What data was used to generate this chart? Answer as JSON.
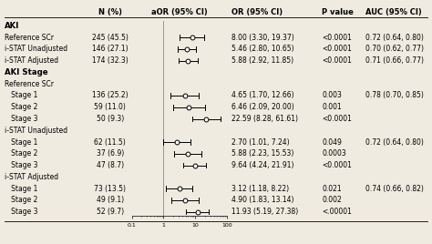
{
  "col_headers": [
    "N (%)",
    "aOR (95% CI)",
    "OR (95% CI)",
    "P value",
    "AUC (95% CI)"
  ],
  "sections": [
    {
      "header": "AKI",
      "rows": [
        {
          "label": "Reference SCr",
          "indent": false,
          "n": "245 (45.5)",
          "or": 8.0,
          "lo": 3.3,
          "hi": 19.37,
          "or_text": "8.00 (3.30, 19.37)",
          "p": "<0.0001",
          "auc": "0.72 (0.64, 0.80)"
        },
        {
          "label": "i-STAT Unadjusted",
          "indent": false,
          "n": "146 (27.1)",
          "or": 5.46,
          "lo": 2.8,
          "hi": 10.65,
          "or_text": "5.46 (2.80, 10.65)",
          "p": "<0.0001",
          "auc": "0.70 (0.62, 0.77)"
        },
        {
          "label": "i-STAT Adjusted",
          "indent": false,
          "n": "174 (32.3)",
          "or": 5.88,
          "lo": 2.92,
          "hi": 11.85,
          "or_text": "5.88 (2.92, 11.85)",
          "p": "<0.0001",
          "auc": "0.71 (0.66, 0.77)"
        }
      ]
    },
    {
      "header": "AKI Stage",
      "rows": [
        {
          "label": "Reference SCr",
          "indent": false,
          "n": "",
          "or": null,
          "lo": null,
          "hi": null,
          "or_text": "",
          "p": "",
          "auc": ""
        },
        {
          "label": "Stage 1",
          "indent": true,
          "n": "136 (25.2)",
          "or": 4.65,
          "lo": 1.7,
          "hi": 12.66,
          "or_text": "4.65 (1.70, 12.66)",
          "p": "0.003",
          "auc": "0.78 (0.70, 0.85)"
        },
        {
          "label": "Stage 2",
          "indent": true,
          "n": "59 (11.0)",
          "or": 6.46,
          "lo": 2.09,
          "hi": 20.0,
          "or_text": "6.46 (2.09, 20.00)",
          "p": "0.001",
          "auc": ""
        },
        {
          "label": "Stage 3",
          "indent": true,
          "n": "50 (9.3)",
          "or": 22.59,
          "lo": 8.28,
          "hi": 61.61,
          "or_text": "22.59 (8.28, 61.61)",
          "p": "<0.0001",
          "auc": ""
        },
        {
          "label": "i-STAT Unadjusted",
          "indent": false,
          "n": "",
          "or": null,
          "lo": null,
          "hi": null,
          "or_text": "",
          "p": "",
          "auc": ""
        },
        {
          "label": "Stage 1",
          "indent": true,
          "n": "62 (11.5)",
          "or": 2.7,
          "lo": 1.01,
          "hi": 7.24,
          "or_text": "2.70 (1.01, 7.24)",
          "p": "0.049",
          "auc": "0.72 (0.64, 0.80)"
        },
        {
          "label": "Stage 2",
          "indent": true,
          "n": "37 (6.9)",
          "or": 5.88,
          "lo": 2.23,
          "hi": 15.53,
          "or_text": "5.88 (2.23, 15.53)",
          "p": "0.0003",
          "auc": ""
        },
        {
          "label": "Stage 3",
          "indent": true,
          "n": "47 (8.7)",
          "or": 9.64,
          "lo": 4.24,
          "hi": 21.91,
          "or_text": "9.64 (4.24, 21.91)",
          "p": "<0.0001",
          "auc": ""
        },
        {
          "label": "i-STAT Adjusted",
          "indent": false,
          "n": "",
          "or": null,
          "lo": null,
          "hi": null,
          "or_text": "",
          "p": "",
          "auc": ""
        },
        {
          "label": "Stage 1",
          "indent": true,
          "n": "73 (13.5)",
          "or": 3.12,
          "lo": 1.18,
          "hi": 8.22,
          "or_text": "3.12 (1.18, 8.22)",
          "p": "0.021",
          "auc": "0.74 (0.66, 0.82)"
        },
        {
          "label": "Stage 2",
          "indent": true,
          "n": "49 (9.1)",
          "or": 4.9,
          "lo": 1.83,
          "hi": 13.14,
          "or_text": "4.90 (1.83, 13.14)",
          "p": "0.002",
          "auc": ""
        },
        {
          "label": "Stage 3",
          "indent": true,
          "n": "52 (9.7)",
          "or": 11.93,
          "lo": 5.19,
          "hi": 27.38,
          "or_text": "11.93 (5.19, 27.38)",
          "p": "<.00001",
          "auc": ""
        }
      ]
    }
  ],
  "background_color": "#f0ebe0",
  "marker_size": 3.5,
  "col_header_fontsize": 6.0,
  "row_fontsize": 5.5,
  "section_fontsize": 6.2
}
